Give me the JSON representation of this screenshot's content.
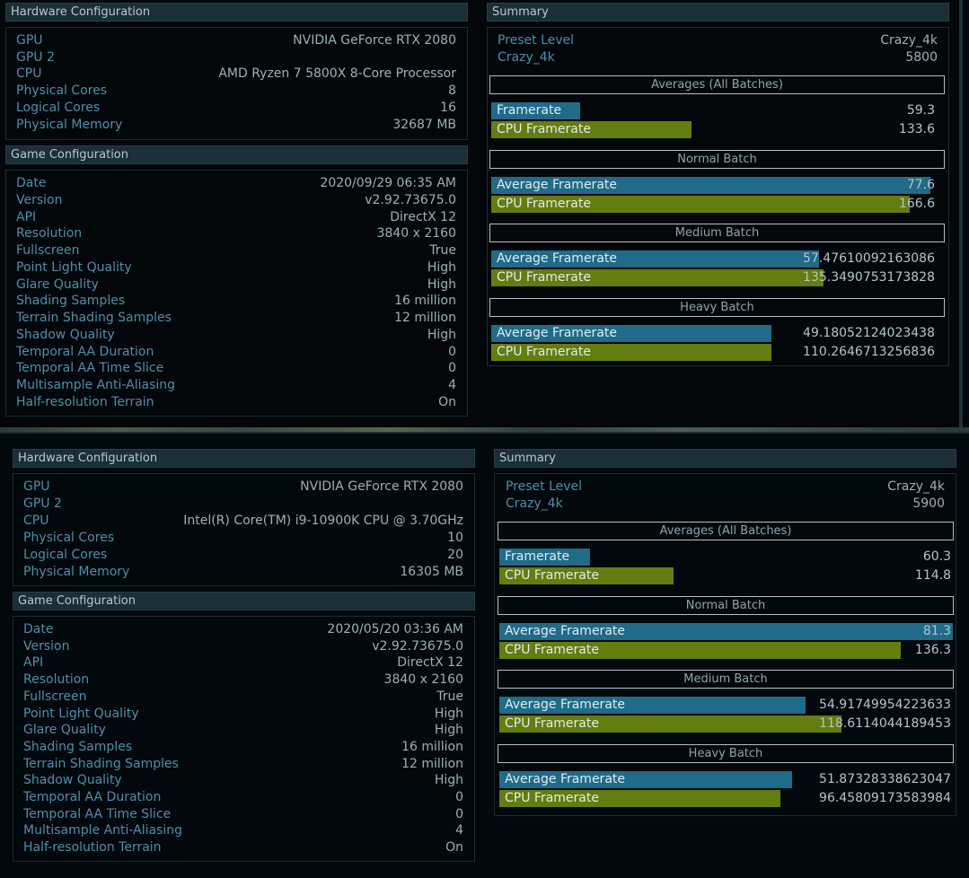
{
  "panels": [
    {
      "hardware_title": "Hardware Configuration",
      "hardware": [
        {
          "label": "GPU",
          "value": "NVIDIA GeForce RTX 2080"
        },
        {
          "label": "GPU 2",
          "value": ""
        },
        {
          "label": "CPU",
          "value": "AMD Ryzen 7 5800X 8-Core Processor"
        },
        {
          "label": "Physical Cores",
          "value": "8"
        },
        {
          "label": "Logical Cores",
          "value": "16"
        },
        {
          "label": "Physical Memory",
          "value": "32687 MB"
        }
      ],
      "game_title": "Game Configuration",
      "game": [
        {
          "label": "Date",
          "value": "2020/09/29 06:35 AM"
        },
        {
          "label": "Version",
          "value": "v2.92.73675.0"
        },
        {
          "label": "API",
          "value": "DirectX 12"
        },
        {
          "label": "Resolution",
          "value": "3840 x 2160"
        },
        {
          "label": "Fullscreen",
          "value": "True"
        },
        {
          "label": "Point Light Quality",
          "value": "High"
        },
        {
          "label": "Glare Quality",
          "value": "High"
        },
        {
          "label": "Shading Samples",
          "value": "16 million"
        },
        {
          "label": "Terrain Shading Samples",
          "value": "12 million"
        },
        {
          "label": "Shadow Quality",
          "value": "High"
        },
        {
          "label": "Temporal AA Duration",
          "value": "0"
        },
        {
          "label": "Temporal AA Time Slice",
          "value": "0"
        },
        {
          "label": "Multisample Anti-Aliasing",
          "value": "4"
        },
        {
          "label": "Half-resolution Terrain",
          "value": "On"
        }
      ],
      "summary_title": "Summary",
      "preset_label": "Preset Level",
      "preset_value": "Crazy_4k",
      "score_label": "Crazy_4k",
      "score_value": "5800",
      "sections": [
        {
          "title": "Averages (All Batches)",
          "bars": [
            {
              "label": "Framerate",
              "value": "59.3",
              "fill": 0.2,
              "kind": "fr"
            },
            {
              "label": "CPU Framerate",
              "value": "133.6",
              "fill": 0.45,
              "kind": "cpu"
            }
          ]
        },
        {
          "title": "Normal Batch",
          "bars": [
            {
              "label": "Average Framerate",
              "value": "77.6",
              "fill": 0.985,
              "kind": "fr"
            },
            {
              "label": "CPU Framerate",
              "value": "166.6",
              "fill": 0.94,
              "kind": "cpu"
            }
          ]
        },
        {
          "title": "Medium Batch",
          "bars": [
            {
              "label": "Average Framerate",
              "value": "57.47610092163086",
              "fill": 0.735,
              "kind": "fr"
            },
            {
              "label": "CPU Framerate",
              "value": "135.3490753173828",
              "fill": 0.745,
              "kind": "cpu"
            }
          ]
        },
        {
          "title": "Heavy Batch",
          "bars": [
            {
              "label": "Average Framerate",
              "value": "49.18052124023438",
              "fill": 0.63,
              "kind": "fr"
            },
            {
              "label": "CPU Framerate",
              "value": "110.2646713256836",
              "fill": 0.63,
              "kind": "cpu"
            }
          ]
        }
      ]
    },
    {
      "hardware_title": "Hardware Configuration",
      "hardware": [
        {
          "label": "GPU",
          "value": "NVIDIA GeForce RTX 2080"
        },
        {
          "label": "GPU 2",
          "value": ""
        },
        {
          "label": "CPU",
          "value": "Intel(R) Core(TM) i9-10900K CPU @ 3.70GHz"
        },
        {
          "label": "Physical Cores",
          "value": "10"
        },
        {
          "label": "Logical Cores",
          "value": "20"
        },
        {
          "label": "Physical Memory",
          "value": "16305 MB"
        }
      ],
      "game_title": "Game Configuration",
      "game": [
        {
          "label": "Date",
          "value": "2020/05/20 03:36 AM"
        },
        {
          "label": "Version",
          "value": "v2.92.73675.0"
        },
        {
          "label": "API",
          "value": "DirectX 12"
        },
        {
          "label": "Resolution",
          "value": "3840 x 2160"
        },
        {
          "label": "Fullscreen",
          "value": "True"
        },
        {
          "label": "Point Light Quality",
          "value": "High"
        },
        {
          "label": "Glare Quality",
          "value": "High"
        },
        {
          "label": "Shading Samples",
          "value": "16 million"
        },
        {
          "label": "Terrain Shading Samples",
          "value": "12 million"
        },
        {
          "label": "Shadow Quality",
          "value": "High"
        },
        {
          "label": "Temporal AA Duration",
          "value": "0"
        },
        {
          "label": "Temporal AA Time Slice",
          "value": "0"
        },
        {
          "label": "Multisample Anti-Aliasing",
          "value": "4"
        },
        {
          "label": "Half-resolution Terrain",
          "value": "On"
        }
      ],
      "summary_title": "Summary",
      "preset_label": "Preset Level",
      "preset_value": "Crazy_4k",
      "score_label": "Crazy_4k",
      "score_value": "5900",
      "sections": [
        {
          "title": "Averages (All Batches)",
          "bars": [
            {
              "label": "Framerate",
              "value": "60.3",
              "fill": 0.2,
              "kind": "fr"
            },
            {
              "label": "CPU Framerate",
              "value": "114.8",
              "fill": 0.385,
              "kind": "cpu"
            }
          ]
        },
        {
          "title": "Normal Batch",
          "bars": [
            {
              "label": "Average Framerate",
              "value": "81.3",
              "fill": 1.0,
              "kind": "fr"
            },
            {
              "label": "CPU Framerate",
              "value": "136.3",
              "fill": 0.885,
              "kind": "cpu"
            }
          ]
        },
        {
          "title": "Medium Batch",
          "bars": [
            {
              "label": "Average Framerate",
              "value": "54.91749954223633",
              "fill": 0.675,
              "kind": "fr"
            },
            {
              "label": "CPU Framerate",
              "value": "118.6114044189453",
              "fill": 0.755,
              "kind": "cpu"
            }
          ]
        },
        {
          "title": "Heavy Batch",
          "bars": [
            {
              "label": "Average Framerate",
              "value": "51.87328338623047",
              "fill": 0.645,
              "kind": "fr"
            },
            {
              "label": "CPU Framerate",
              "value": "96.45809173583984",
              "fill": 0.62,
              "kind": "cpu"
            }
          ]
        }
      ]
    }
  ]
}
